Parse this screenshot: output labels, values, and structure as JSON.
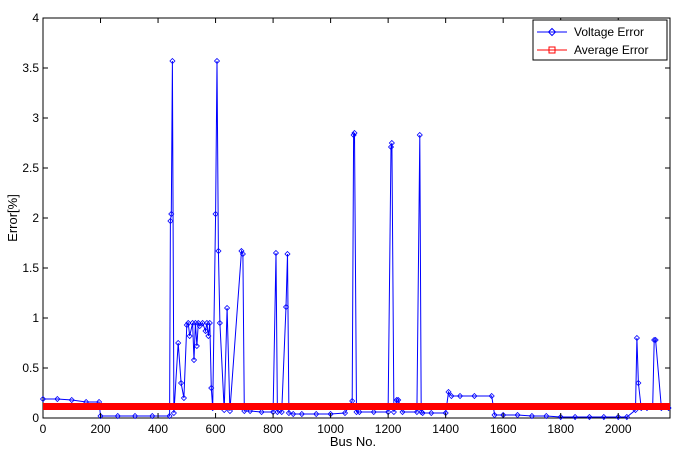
{
  "chart_data": {
    "type": "line",
    "title": "",
    "xlabel": "Bus No.",
    "ylabel": "Error[%]",
    "xlim": [
      0,
      2180
    ],
    "ylim": [
      0,
      4
    ],
    "xticks": [
      0,
      200,
      400,
      600,
      800,
      1000,
      1200,
      1400,
      1600,
      1800,
      2000
    ],
    "xtick_labels": [
      "0",
      "200",
      "400",
      "600",
      "800",
      "1000",
      "1200",
      "1400",
      "1600",
      "1800",
      "2000"
    ],
    "yticks": [
      0,
      0.5,
      1,
      1.5,
      2,
      2.5,
      3,
      3.5,
      4
    ],
    "ytick_labels": [
      "0",
      "0.5",
      "1",
      "1.5",
      "2",
      "2.5",
      "3",
      "3.5",
      "4"
    ],
    "grid": false,
    "legend_position": "top-right",
    "colors": {
      "voltage": "#0000ff",
      "average": "#ff0000",
      "axes": "#000000"
    },
    "series": [
      {
        "name": "Voltage Error",
        "marker": "diamond",
        "x": [
          0,
          50,
          100,
          150,
          195,
          200,
          260,
          320,
          380,
          440,
          443,
          446,
          450,
          455,
          470,
          480,
          490,
          500,
          505,
          510,
          520,
          525,
          530,
          535,
          540,
          545,
          555,
          565,
          570,
          575,
          580,
          585,
          590,
          600,
          605,
          610,
          615,
          630,
          640,
          650,
          690,
          695,
          700,
          720,
          760,
          800,
          810,
          815,
          830,
          845,
          850,
          855,
          870,
          900,
          950,
          1000,
          1050,
          1075,
          1080,
          1083,
          1090,
          1100,
          1150,
          1200,
          1210,
          1213,
          1220,
          1230,
          1235,
          1250,
          1300,
          1310,
          1315,
          1320,
          1350,
          1400,
          1410,
          1420,
          1450,
          1500,
          1560,
          1570,
          1600,
          1650,
          1700,
          1750,
          1800,
          1850,
          1900,
          1950,
          2000,
          2030,
          2060,
          2065,
          2070,
          2080,
          2100,
          2120,
          2125,
          2130,
          2150,
          2175
        ],
        "y": [
          0.19,
          0.19,
          0.18,
          0.16,
          0.16,
          0.02,
          0.02,
          0.02,
          0.02,
          0.02,
          1.97,
          2.04,
          3.57,
          0.05,
          0.75,
          0.35,
          0.2,
          0.93,
          0.95,
          0.82,
          0.95,
          0.58,
          0.95,
          0.72,
          0.95,
          0.92,
          0.95,
          0.87,
          0.95,
          0.82,
          0.95,
          0.3,
          0.1,
          2.04,
          3.57,
          1.67,
          0.95,
          0.08,
          1.1,
          0.07,
          1.67,
          1.64,
          0.07,
          0.07,
          0.06,
          0.06,
          1.65,
          0.06,
          0.06,
          1.11,
          1.64,
          0.05,
          0.04,
          0.04,
          0.04,
          0.04,
          0.05,
          0.17,
          2.83,
          2.85,
          0.06,
          0.06,
          0.06,
          0.06,
          2.71,
          2.75,
          0.06,
          0.18,
          0.18,
          0.06,
          0.06,
          2.83,
          0.06,
          0.05,
          0.05,
          0.05,
          0.26,
          0.22,
          0.22,
          0.22,
          0.22,
          0.03,
          0.03,
          0.03,
          0.02,
          0.02,
          0.01,
          0.01,
          0.01,
          0.01,
          0.01,
          0.01,
          0.08,
          0.8,
          0.35,
          0.1,
          0.1,
          0.12,
          0.78,
          0.78,
          0.1,
          0.1
        ]
      },
      {
        "name": "Average Error",
        "marker": "square",
        "x": [
          0,
          2180
        ],
        "y": [
          0.115,
          0.115
        ]
      }
    ]
  }
}
